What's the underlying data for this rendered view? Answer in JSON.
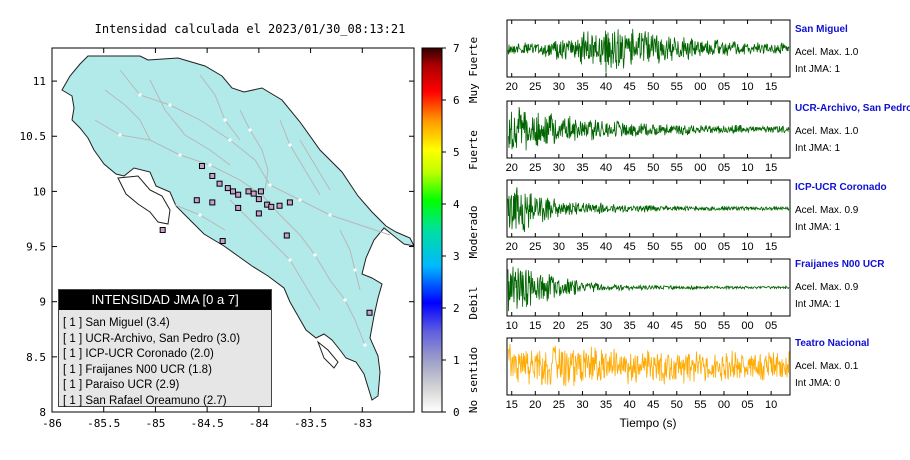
{
  "map_title": "Intensidad calculada el 2023/01/30_08:13:21",
  "map": {
    "x_ticks": [
      "-86",
      "-85.5",
      "-85",
      "-84.5",
      "-84",
      "-83.5",
      "-83"
    ],
    "y_ticks": [
      "11",
      "10.5",
      "10",
      "9.5",
      "9",
      "8.5",
      "8"
    ],
    "land_color": "#b2eaea",
    "marker_color": "#c8a0c8"
  },
  "colorbar": {
    "ticks": [
      "0",
      "1",
      "2",
      "3",
      "4",
      "5",
      "6",
      "7"
    ],
    "category_labels": [
      "No sentido",
      "Debil",
      "Moderado",
      "Fuerte",
      "Muy Fuerte"
    ]
  },
  "legend": {
    "title": "INTENSIDAD JMA [0 a 7]",
    "items": [
      "[ 1 ]  San Miguel (3.4)",
      "[ 1 ]  UCR-Archivo, San Pedro (3.0)",
      "[ 1 ]  ICP-UCR Coronado (2.0)",
      "[ 1 ]  Fraijanes N00 UCR (1.8)",
      "[ 1 ]  Paraiso UCR (2.9)",
      "[ 1 ]  San Rafael Oreamuno (2.7)"
    ]
  },
  "chart_data": [
    {
      "type": "scatter",
      "title": "Intensidad calculada el 2023/01/30_08:13:21",
      "xlim": [
        -86.0,
        -82.5
      ],
      "ylim": [
        8.0,
        11.3
      ],
      "stations": [
        {
          "lon": -84.55,
          "lat": 10.23
        },
        {
          "lon": -84.45,
          "lat": 10.14
        },
        {
          "lon": -84.38,
          "lat": 10.07
        },
        {
          "lon": -84.3,
          "lat": 10.03
        },
        {
          "lon": -84.25,
          "lat": 10.0
        },
        {
          "lon": -84.2,
          "lat": 9.97
        },
        {
          "lon": -84.1,
          "lat": 10.0
        },
        {
          "lon": -84.05,
          "lat": 9.98
        },
        {
          "lon": -83.98,
          "lat": 10.0
        },
        {
          "lon": -84.0,
          "lat": 9.93
        },
        {
          "lon": -83.92,
          "lat": 9.88
        },
        {
          "lon": -83.88,
          "lat": 9.86
        },
        {
          "lon": -83.8,
          "lat": 9.87
        },
        {
          "lon": -83.7,
          "lat": 9.9
        },
        {
          "lon": -84.0,
          "lat": 9.8
        },
        {
          "lon": -84.2,
          "lat": 9.85
        },
        {
          "lon": -84.45,
          "lat": 9.9
        },
        {
          "lon": -84.6,
          "lat": 9.92
        },
        {
          "lon": -84.93,
          "lat": 9.65
        },
        {
          "lon": -84.35,
          "lat": 9.55
        },
        {
          "lon": -83.73,
          "lat": 9.6
        },
        {
          "lon": -82.93,
          "lat": 8.9
        }
      ]
    },
    {
      "type": "line",
      "name": "San Miguel",
      "x_ticks": [
        "20",
        "25",
        "30",
        "35",
        "40",
        "45",
        "50",
        "55",
        "00",
        "05",
        "10",
        "15"
      ],
      "x_start": 17,
      "x_end": 77
    },
    {
      "type": "line",
      "name": "UCR-Archivo, San Pedro",
      "x_ticks": [
        "20",
        "25",
        "30",
        "35",
        "40",
        "45",
        "50",
        "55",
        "00",
        "05",
        "10",
        "15"
      ],
      "x_start": 17,
      "x_end": 77
    },
    {
      "type": "line",
      "name": "ICP-UCR Coronado",
      "x_ticks": [
        "20",
        "25",
        "30",
        "35",
        "40",
        "45",
        "50",
        "55",
        "00",
        "05",
        "10",
        "15"
      ],
      "x_start": 16,
      "x_end": 76
    },
    {
      "type": "line",
      "name": "Fraijanes N00 UCR",
      "x_ticks": [
        "10",
        "15",
        "20",
        "25",
        "30",
        "35",
        "40",
        "45",
        "50",
        "55",
        "00",
        "05"
      ],
      "x_start": 9,
      "x_end": 69
    },
    {
      "type": "line",
      "name": "Teatro Nacional",
      "x_ticks": [
        "15",
        "20",
        "25",
        "30",
        "35",
        "40",
        "45",
        "50",
        "55",
        "00",
        "05",
        "10"
      ],
      "x_start": 14,
      "x_end": 74,
      "xlabel": "Tiempo (s)"
    }
  ],
  "stations": [
    {
      "name": "San Miguel",
      "acc": "Acel. Max. 1.0",
      "int": "Int JMA: 1",
      "color": "#006400"
    },
    {
      "name": "UCR-Archivo, San Pedro",
      "acc": "Acel. Max. 1.0",
      "int": "Int JMA: 1",
      "color": "#006400"
    },
    {
      "name": "ICP-UCR Coronado",
      "acc": "Acel. Max. 0.9",
      "int": "Int JMA: 1",
      "color": "#006400"
    },
    {
      "name": "Fraijanes N00 UCR",
      "acc": "Acel. Max. 0.9",
      "int": "Int JMA: 1",
      "color": "#006400"
    },
    {
      "name": "Teatro Nacional",
      "acc": "Acel. Max. 0.1",
      "int": "Int JMA: 0",
      "color": "#ffaa00"
    }
  ],
  "xlabel": "Tiempo (s)"
}
